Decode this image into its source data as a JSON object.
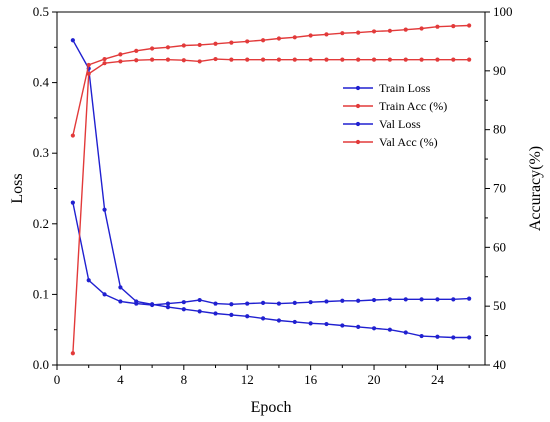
{
  "chart_data": {
    "type": "line",
    "xlabel": "Epoch",
    "ylabel_left": "Loss",
    "ylabel_right": "Accuracy(%)",
    "xlim": [
      0,
      27
    ],
    "ylim_left": [
      0,
      0.5
    ],
    "ylim_right": [
      40,
      100
    ],
    "x_ticks": [
      0,
      4,
      8,
      12,
      16,
      20,
      24
    ],
    "y_ticks_left": [
      0.0,
      0.1,
      0.2,
      0.3,
      0.4,
      0.5
    ],
    "y_ticks_right": [
      40,
      50,
      60,
      70,
      80,
      90,
      100
    ],
    "grid": false,
    "legend_position": "top-right",
    "x": [
      1,
      2,
      3,
      4,
      5,
      6,
      7,
      8,
      9,
      10,
      11,
      12,
      13,
      14,
      15,
      16,
      17,
      18,
      19,
      20,
      21,
      22,
      23,
      24,
      25,
      26
    ],
    "series": [
      {
        "name": "Train Loss",
        "axis": "left",
        "color": "#2020d0",
        "values": [
          0.46,
          0.42,
          0.22,
          0.11,
          0.09,
          0.086,
          0.082,
          0.079,
          0.076,
          0.073,
          0.071,
          0.069,
          0.066,
          0.063,
          0.061,
          0.059,
          0.058,
          0.056,
          0.054,
          0.052,
          0.05,
          0.046,
          0.041,
          0.04,
          0.039,
          0.039
        ]
      },
      {
        "name": "Train Acc (%)",
        "axis": "right",
        "color": "#e23a3a",
        "values": [
          79,
          91,
          92,
          92.8,
          93.4,
          93.8,
          94,
          94.3,
          94.4,
          94.6,
          94.8,
          95,
          95.2,
          95.5,
          95.7,
          96,
          96.2,
          96.4,
          96.5,
          96.7,
          96.8,
          97,
          97.2,
          97.5,
          97.6,
          97.7
        ]
      },
      {
        "name": "Val Loss",
        "axis": "left",
        "color": "#2020d0",
        "values": [
          0.23,
          0.12,
          0.1,
          0.09,
          0.087,
          0.085,
          0.087,
          0.089,
          0.092,
          0.087,
          0.086,
          0.087,
          0.088,
          0.087,
          0.088,
          0.089,
          0.09,
          0.091,
          0.091,
          0.092,
          0.093,
          0.093,
          0.093,
          0.093,
          0.093,
          0.094
        ]
      },
      {
        "name": "Val Acc (%)",
        "axis": "right",
        "color": "#e23a3a",
        "values": [
          42,
          89.5,
          91.3,
          91.6,
          91.8,
          91.9,
          91.9,
          91.8,
          91.6,
          92,
          91.9,
          91.9,
          91.9,
          91.9,
          91.9,
          91.9,
          91.9,
          91.9,
          91.9,
          91.9,
          91.9,
          91.9,
          91.9,
          91.9,
          91.9,
          91.9
        ]
      }
    ]
  }
}
